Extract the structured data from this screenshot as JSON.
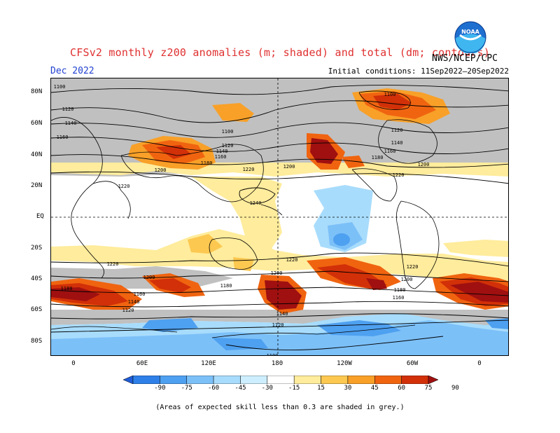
{
  "title": "CFSv2 monthly z200 anomalies (m; shaded) and total (dm; contours)",
  "valid_month": "Dec 2022",
  "initial_conditions": "Initial conditions: 11Sep2022–20Sep2022",
  "agency": "NWS/NCEP/CPC",
  "logo_text": "NOAA",
  "lat_labels": [
    "80N",
    "60N",
    "40N",
    "20N",
    "EQ",
    "20S",
    "40S",
    "60S",
    "80S"
  ],
  "lon_labels": [
    "0",
    "60E",
    "120E",
    "180",
    "120W",
    "60W",
    "0"
  ],
  "colorbar": {
    "ticks": [
      "-90",
      "-75",
      "-60",
      "-45",
      "-30",
      "-15",
      "15",
      "30",
      "45",
      "60",
      "75",
      "90"
    ],
    "colors": [
      "#1e5cd8",
      "#2e80e8",
      "#4ea0f0",
      "#7cc0f8",
      "#a8dcfc",
      "#cdeefe",
      "#ffffff",
      "#ffec9c",
      "#fcc850",
      "#f8a028",
      "#f06410",
      "#d23008",
      "#a01010"
    ]
  },
  "note": "(Areas of expected skill less than 0.3 are shaded in grey.)",
  "contour_labels": [
    "1100",
    "1120",
    "1140",
    "1160",
    "1180",
    "1200",
    "1220",
    "1240"
  ]
}
